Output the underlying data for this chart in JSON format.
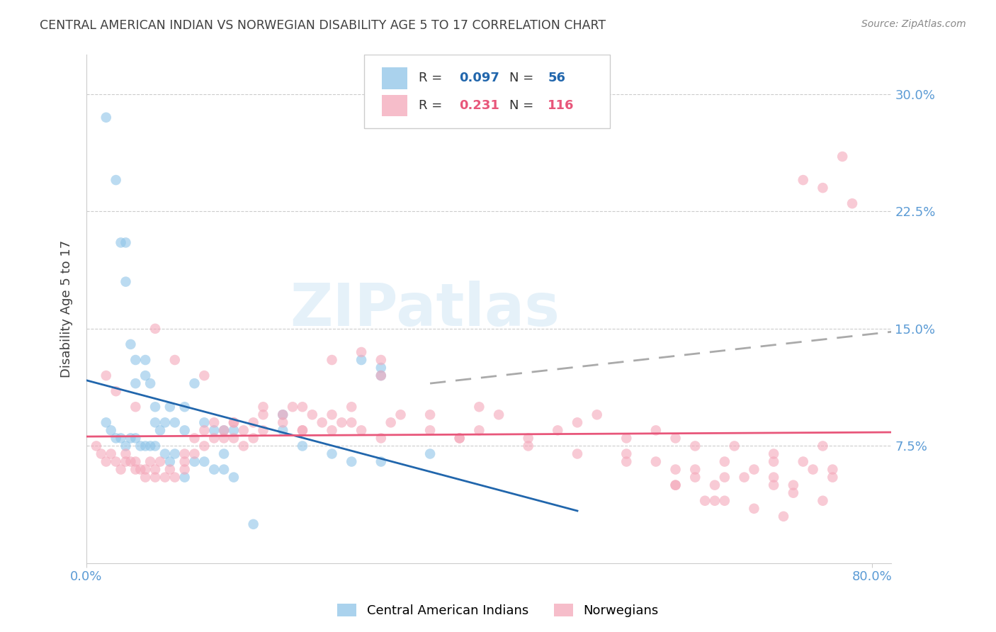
{
  "title": "CENTRAL AMERICAN INDIAN VS NORWEGIAN DISABILITY AGE 5 TO 17 CORRELATION CHART",
  "source": "Source: ZipAtlas.com",
  "ylabel": "Disability Age 5 to 17",
  "ytick_labels": [
    "7.5%",
    "15.0%",
    "22.5%",
    "30.0%"
  ],
  "ytick_values": [
    0.075,
    0.15,
    0.225,
    0.3
  ],
  "ylim": [
    0.0,
    0.325
  ],
  "xlim": [
    0.0,
    0.82
  ],
  "color_blue": "#8ec4e8",
  "color_pink": "#f4a7b9",
  "color_blue_line": "#2166ac",
  "color_pink_line": "#e8567a",
  "color_dashed_line": "#aaaaaa",
  "watermark_text": "ZIPatlas",
  "background_color": "#ffffff",
  "grid_color": "#cccccc",
  "tick_label_color": "#5b9bd5",
  "title_color": "#404040",
  "blue_scatter_x": [
    0.02,
    0.03,
    0.035,
    0.04,
    0.04,
    0.045,
    0.05,
    0.05,
    0.06,
    0.06,
    0.065,
    0.07,
    0.07,
    0.08,
    0.085,
    0.09,
    0.1,
    0.1,
    0.11,
    0.12,
    0.13,
    0.14,
    0.14,
    0.15,
    0.2,
    0.28,
    0.3,
    0.3,
    0.02,
    0.025,
    0.03,
    0.035,
    0.04,
    0.045,
    0.05,
    0.055,
    0.06,
    0.065,
    0.07,
    0.075,
    0.08,
    0.085,
    0.09,
    0.1,
    0.11,
    0.12,
    0.13,
    0.14,
    0.15,
    0.17,
    0.2,
    0.22,
    0.25,
    0.27,
    0.3,
    0.35
  ],
  "blue_scatter_y": [
    0.285,
    0.245,
    0.205,
    0.205,
    0.18,
    0.14,
    0.13,
    0.115,
    0.13,
    0.12,
    0.115,
    0.1,
    0.09,
    0.09,
    0.1,
    0.09,
    0.1,
    0.085,
    0.115,
    0.09,
    0.085,
    0.085,
    0.07,
    0.085,
    0.095,
    0.13,
    0.12,
    0.125,
    0.09,
    0.085,
    0.08,
    0.08,
    0.075,
    0.08,
    0.08,
    0.075,
    0.075,
    0.075,
    0.075,
    0.085,
    0.07,
    0.065,
    0.07,
    0.055,
    0.065,
    0.065,
    0.06,
    0.06,
    0.055,
    0.025,
    0.085,
    0.075,
    0.07,
    0.065,
    0.065,
    0.07
  ],
  "pink_scatter_x": [
    0.01,
    0.015,
    0.02,
    0.025,
    0.03,
    0.035,
    0.04,
    0.04,
    0.045,
    0.05,
    0.05,
    0.055,
    0.06,
    0.06,
    0.065,
    0.07,
    0.07,
    0.075,
    0.08,
    0.085,
    0.09,
    0.1,
    0.1,
    0.1,
    0.11,
    0.11,
    0.12,
    0.12,
    0.13,
    0.13,
    0.14,
    0.14,
    0.15,
    0.15,
    0.16,
    0.16,
    0.17,
    0.17,
    0.18,
    0.18,
    0.2,
    0.2,
    0.21,
    0.22,
    0.22,
    0.23,
    0.24,
    0.25,
    0.25,
    0.26,
    0.27,
    0.27,
    0.28,
    0.3,
    0.3,
    0.31,
    0.32,
    0.35,
    0.38,
    0.4,
    0.42,
    0.45,
    0.48,
    0.5,
    0.52,
    0.55,
    0.58,
    0.6,
    0.62,
    0.65,
    0.67,
    0.7,
    0.72,
    0.75,
    0.02,
    0.03,
    0.05,
    0.07,
    0.09,
    0.12,
    0.15,
    0.18,
    0.22,
    0.25,
    0.28,
    0.3,
    0.35,
    0.38,
    0.4,
    0.45,
    0.5,
    0.55,
    0.6,
    0.65,
    0.68,
    0.7,
    0.73,
    0.75,
    0.77,
    0.78,
    0.6,
    0.65,
    0.7,
    0.72,
    0.75,
    0.55,
    0.58,
    0.62,
    0.6,
    0.63,
    0.66,
    0.7,
    0.73,
    0.76,
    0.62,
    0.64,
    0.68,
    0.71,
    0.74,
    0.76,
    0.64
  ],
  "pink_scatter_y": [
    0.075,
    0.07,
    0.065,
    0.07,
    0.065,
    0.06,
    0.065,
    0.07,
    0.065,
    0.06,
    0.065,
    0.06,
    0.055,
    0.06,
    0.065,
    0.055,
    0.06,
    0.065,
    0.055,
    0.06,
    0.055,
    0.07,
    0.065,
    0.06,
    0.08,
    0.07,
    0.085,
    0.075,
    0.09,
    0.08,
    0.08,
    0.085,
    0.09,
    0.08,
    0.085,
    0.075,
    0.09,
    0.08,
    0.085,
    0.1,
    0.095,
    0.09,
    0.1,
    0.1,
    0.085,
    0.095,
    0.09,
    0.085,
    0.095,
    0.09,
    0.1,
    0.09,
    0.085,
    0.12,
    0.08,
    0.09,
    0.095,
    0.085,
    0.08,
    0.1,
    0.095,
    0.08,
    0.085,
    0.09,
    0.095,
    0.08,
    0.085,
    0.08,
    0.075,
    0.065,
    0.055,
    0.05,
    0.045,
    0.04,
    0.12,
    0.11,
    0.1,
    0.15,
    0.13,
    0.12,
    0.09,
    0.095,
    0.085,
    0.13,
    0.135,
    0.13,
    0.095,
    0.08,
    0.085,
    0.075,
    0.07,
    0.065,
    0.06,
    0.055,
    0.06,
    0.065,
    0.245,
    0.24,
    0.26,
    0.23,
    0.05,
    0.04,
    0.055,
    0.05,
    0.075,
    0.07,
    0.065,
    0.06,
    0.05,
    0.04,
    0.075,
    0.07,
    0.065,
    0.06,
    0.055,
    0.04,
    0.035,
    0.03,
    0.06,
    0.055,
    0.05
  ]
}
